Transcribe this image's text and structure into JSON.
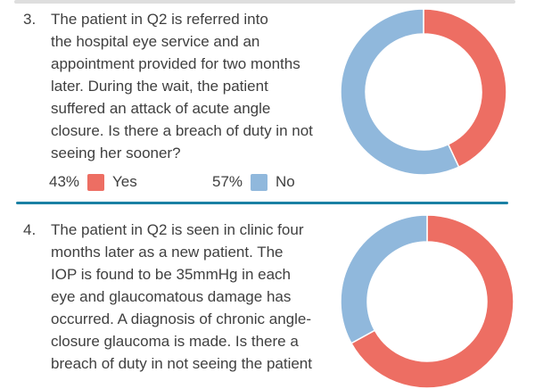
{
  "questions": [
    {
      "number": "3.",
      "text": "The patient in Q2 is referred into\nthe hospital eye service and an\nappointment provided for two months\nlater. During the wait, the patient\nsuffered an attack of acute angle\nclosure. Is there a breach of duty in not\nseeing her sooner?",
      "legend": [
        {
          "pct": "43%",
          "label": "Yes",
          "color": "#ED6E63"
        },
        {
          "pct": "57%",
          "label": "No",
          "color": "#90B8DC"
        }
      ]
    },
    {
      "number": "4.",
      "text": "The patient in Q2 is seen in clinic four\nmonths later as a new patient. The\nIOP is found to be 35mmHg in each\neye and glaucomatous damage has\noccurred. A diagnosis of chronic angle-\nclosure glaucoma is made. Is there a\nbreach of duty in not seeing the patient"
    }
  ],
  "chart_data": [
    {
      "type": "pie",
      "subtype": "donut",
      "title": "Question 3 responses",
      "categories": [
        "Yes",
        "No"
      ],
      "values": [
        43,
        57
      ],
      "colors": [
        "#ED6E63",
        "#90B8DC"
      ],
      "start_angle_deg": 0,
      "direction": "clockwise",
      "legend_position": "below-left",
      "legend_labels": [
        "43% Yes",
        "57% No"
      ]
    },
    {
      "type": "pie",
      "subtype": "donut",
      "title": "Question 4 responses (legend cut off below viewport; values estimated from arc angles)",
      "categories": [
        "Yes",
        "No"
      ],
      "values": [
        67,
        33
      ],
      "colors": [
        "#ED6E63",
        "#90B8DC"
      ],
      "start_angle_deg": 0,
      "direction": "clockwise",
      "legend_position": "not-visible"
    }
  ],
  "colors": {
    "text": "#404040",
    "yes_red": "#ED6E63",
    "no_blue": "#90B8DC",
    "divider_teal": "#1A80A4",
    "top_strip_gray": "#DEDEDE",
    "background": "#FFFFFF"
  }
}
